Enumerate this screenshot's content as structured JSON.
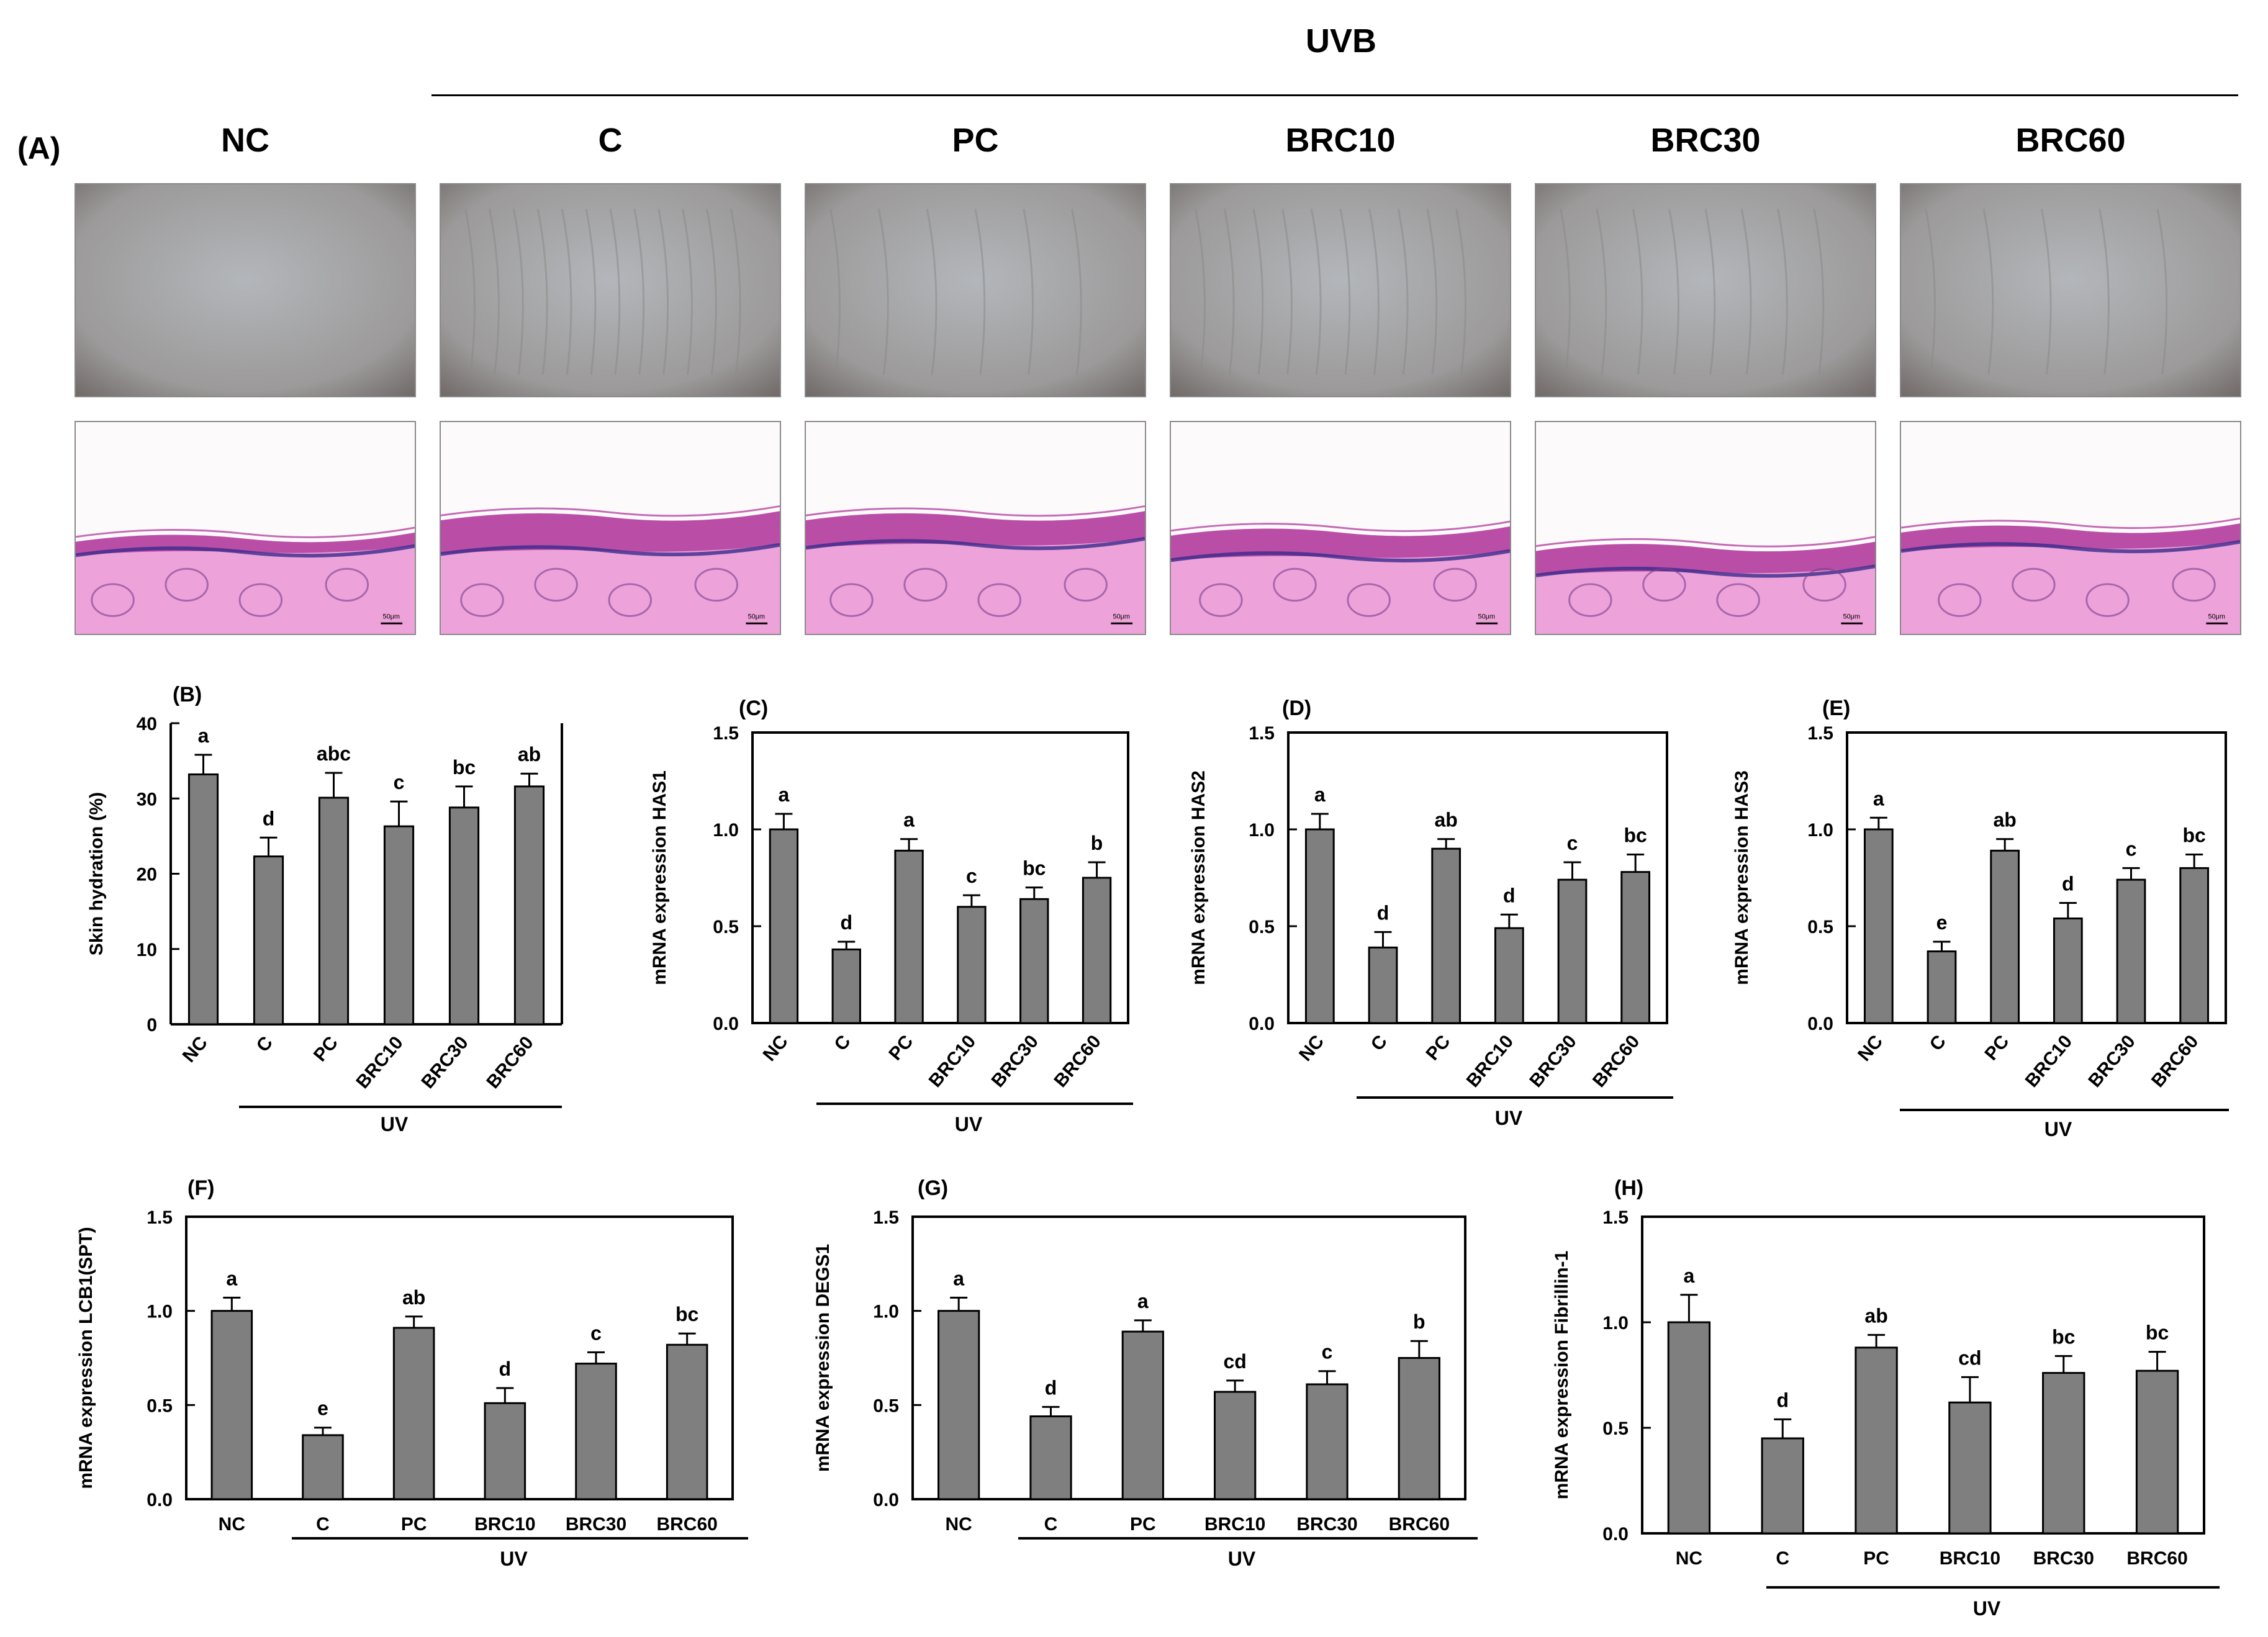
{
  "figure": {
    "uvb_label": "UVB",
    "panel_a_label": "(A)",
    "groups": [
      "NC",
      "C",
      "PC",
      "BRC10",
      "BRC30",
      "BRC60"
    ],
    "scale_bar_label": "50μm"
  },
  "colors": {
    "bar_fill": "#7f7f7f",
    "skin_photo": "#a8a8a8",
    "histo_tissue": "#e884cf",
    "histo_nuclei": "#3a2c8c"
  },
  "chart_data": [
    {
      "id": "B",
      "panel_label": "(B)",
      "type": "bar",
      "categories": [
        "NC",
        "C",
        "PC",
        "BRC10",
        "BRC30",
        "BRC60"
      ],
      "values": [
        33.2,
        22.3,
        30.1,
        26.3,
        28.8,
        31.6
      ],
      "errors": [
        2.6,
        2.5,
        3.3,
        3.3,
        2.8,
        1.7
      ],
      "annotations": [
        "a",
        "d",
        "abc",
        "c",
        "bc",
        "ab"
      ],
      "ylabel": "Skin hydration (%)",
      "ylim": [
        0,
        40
      ],
      "yticks": [
        "0",
        "10",
        "20",
        "30",
        "40"
      ],
      "group_label": "UV",
      "box": false,
      "tick_labels_rotated": true
    },
    {
      "id": "C",
      "panel_label": "(C)",
      "type": "bar",
      "categories": [
        "NC",
        "C",
        "PC",
        "BRC10",
        "BRC30",
        "BRC60"
      ],
      "values": [
        1.0,
        0.38,
        0.89,
        0.6,
        0.64,
        0.75
      ],
      "errors": [
        0.08,
        0.04,
        0.06,
        0.06,
        0.06,
        0.08
      ],
      "annotations": [
        "a",
        "d",
        "a",
        "c",
        "bc",
        "b"
      ],
      "ylabel": "mRNA expression HAS1",
      "ylim": [
        0,
        1.5
      ],
      "yticks": [
        "0.0",
        "0.5",
        "1.0",
        "1.5"
      ],
      "group_label": "UV",
      "box": true,
      "tick_labels_rotated": true
    },
    {
      "id": "D",
      "panel_label": "(D)",
      "type": "bar",
      "categories": [
        "NC",
        "C",
        "PC",
        "BRC10",
        "BRC30",
        "BRC60"
      ],
      "values": [
        1.0,
        0.39,
        0.9,
        0.49,
        0.74,
        0.78
      ],
      "errors": [
        0.08,
        0.08,
        0.05,
        0.07,
        0.09,
        0.09
      ],
      "annotations": [
        "a",
        "d",
        "ab",
        "d",
        "c",
        "bc"
      ],
      "ylabel": "mRNA expression HAS2",
      "ylim": [
        0,
        1.5
      ],
      "yticks": [
        "0.0",
        "0.5",
        "1.0",
        "1.5"
      ],
      "group_label": "UV",
      "box": true,
      "tick_labels_rotated": true
    },
    {
      "id": "E",
      "panel_label": "(E)",
      "type": "bar",
      "categories": [
        "NC",
        "C",
        "PC",
        "BRC10",
        "BRC30",
        "BRC60"
      ],
      "values": [
        1.0,
        0.37,
        0.89,
        0.54,
        0.74,
        0.8
      ],
      "errors": [
        0.06,
        0.05,
        0.06,
        0.08,
        0.06,
        0.07
      ],
      "annotations": [
        "a",
        "e",
        "ab",
        "d",
        "c",
        "bc"
      ],
      "ylabel": "mRNA expression HAS3",
      "ylim": [
        0,
        1.5
      ],
      "yticks": [
        "0.0",
        "0.5",
        "1.0",
        "1.5"
      ],
      "group_label": "UV",
      "box": true,
      "tick_labels_rotated": true
    },
    {
      "id": "F",
      "panel_label": "(F)",
      "type": "bar",
      "categories": [
        "NC",
        "C",
        "PC",
        "BRC10",
        "BRC30",
        "BRC60"
      ],
      "values": [
        1.0,
        0.34,
        0.91,
        0.51,
        0.72,
        0.82
      ],
      "errors": [
        0.07,
        0.04,
        0.06,
        0.08,
        0.06,
        0.06
      ],
      "annotations": [
        "a",
        "e",
        "ab",
        "d",
        "c",
        "bc"
      ],
      "ylabel": "mRNA expression LCB1(SPT)",
      "ylim": [
        0,
        1.5
      ],
      "yticks": [
        "0.0",
        "0.5",
        "1.0",
        "1.5"
      ],
      "group_label": "UV",
      "box": true,
      "tick_labels_rotated": false
    },
    {
      "id": "G",
      "panel_label": "(G)",
      "type": "bar",
      "categories": [
        "NC",
        "C",
        "PC",
        "BRC10",
        "BRC30",
        "BRC60"
      ],
      "values": [
        1.0,
        0.44,
        0.89,
        0.57,
        0.61,
        0.75
      ],
      "errors": [
        0.07,
        0.05,
        0.06,
        0.06,
        0.07,
        0.09
      ],
      "annotations": [
        "a",
        "d",
        "a",
        "cd",
        "c",
        "b"
      ],
      "ylabel": "mRNA expression DEGS1",
      "ylim": [
        0,
        1.5
      ],
      "yticks": [
        "0.0",
        "0.5",
        "1.0",
        "1.5"
      ],
      "group_label": "UV",
      "box": true,
      "tick_labels_rotated": false
    },
    {
      "id": "H",
      "panel_label": "(H)",
      "type": "bar",
      "categories": [
        "NC",
        "C",
        "PC",
        "BRC10",
        "BRC30",
        "BRC60"
      ],
      "values": [
        1.0,
        0.45,
        0.88,
        0.62,
        0.76,
        0.77
      ],
      "errors": [
        0.13,
        0.09,
        0.06,
        0.12,
        0.08,
        0.09
      ],
      "annotations": [
        "a",
        "d",
        "ab",
        "cd",
        "bc",
        "bc"
      ],
      "ylabel": "mRNA expression Fibrillin-1",
      "ylim": [
        0,
        1.5
      ],
      "yticks": [
        "0.0",
        "0.5",
        "1.0",
        "1.5"
      ],
      "group_label": "UV",
      "box": true,
      "tick_labels_rotated": false
    }
  ]
}
